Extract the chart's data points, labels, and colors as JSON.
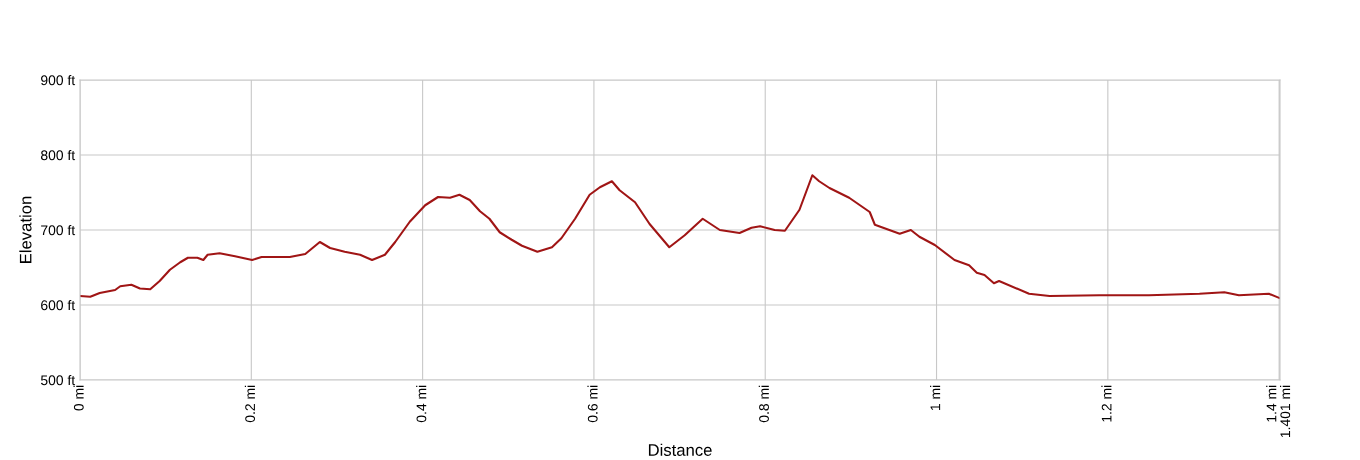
{
  "chart_data": {
    "type": "line",
    "xlabel": "Distance",
    "ylabel": "Elevation",
    "x": [
      0,
      0.012,
      0.023,
      0.041,
      0.047,
      0.06,
      0.07,
      0.082,
      0.093,
      0.105,
      0.117,
      0.126,
      0.137,
      0.144,
      0.149,
      0.163,
      0.181,
      0.201,
      0.212,
      0.245,
      0.263,
      0.28,
      0.292,
      0.309,
      0.327,
      0.341,
      0.356,
      0.368,
      0.385,
      0.403,
      0.418,
      0.432,
      0.443,
      0.455,
      0.467,
      0.478,
      0.49,
      0.504,
      0.516,
      0.534,
      0.551,
      0.562,
      0.578,
      0.595,
      0.607,
      0.621,
      0.63,
      0.648,
      0.665,
      0.688,
      0.706,
      0.727,
      0.747,
      0.77,
      0.784,
      0.794,
      0.811,
      0.823,
      0.84,
      0.855,
      0.863,
      0.875,
      0.898,
      0.922,
      0.928,
      0.957,
      0.97,
      0.98,
      0.998,
      1.021,
      1.038,
      1.047,
      1.056,
      1.067,
      1.073,
      1.108,
      1.132,
      1.19,
      1.248,
      1.307,
      1.336,
      1.353,
      1.388,
      1.401
    ],
    "series": [
      {
        "color": "#a01515",
        "values": [
          612,
          611,
          616,
          620,
          625,
          627,
          622,
          621,
          632,
          647,
          657,
          663,
          663,
          660,
          667,
          669,
          665,
          660,
          664,
          664,
          668,
          684,
          676,
          671,
          667,
          660,
          667,
          684,
          711,
          733,
          744,
          743,
          747,
          740,
          725,
          715,
          697,
          687,
          679,
          671,
          677,
          689,
          715,
          747,
          757,
          765,
          753,
          737,
          708,
          677,
          693,
          715,
          700,
          696,
          703,
          705,
          700,
          699,
          727,
          773,
          765,
          756,
          743,
          724,
          707,
          695,
          700,
          691,
          680,
          660,
          653,
          643,
          640,
          629,
          632,
          615,
          612,
          613,
          613,
          615,
          617,
          613,
          615,
          609
        ]
      }
    ],
    "xlim": [
      0,
      1.401
    ],
    "ylim": [
      500,
      900
    ],
    "xticks": [
      {
        "value": 0,
        "label": "0 mi"
      },
      {
        "value": 0.2,
        "label": "0.2 mi"
      },
      {
        "value": 0.4,
        "label": "0.4 mi"
      },
      {
        "value": 0.6,
        "label": "0.6 mi"
      },
      {
        "value": 0.8,
        "label": "0.8 mi"
      },
      {
        "value": 1,
        "label": "1 mi"
      },
      {
        "value": 1.2,
        "label": "1.2 mi"
      },
      {
        "value": 1.4,
        "label": "1.4 mi"
      },
      {
        "value": 1.401,
        "label": "1.401 mi"
      }
    ],
    "yticks": [
      {
        "value": 500,
        "label": "500 ft"
      },
      {
        "value": 600,
        "label": "600 ft"
      },
      {
        "value": 700,
        "label": "700 ft"
      },
      {
        "value": 800,
        "label": "800 ft"
      },
      {
        "value": 900,
        "label": "900 ft"
      }
    ],
    "grid": true,
    "legend": false,
    "marker": "none",
    "line_style": "solid"
  }
}
